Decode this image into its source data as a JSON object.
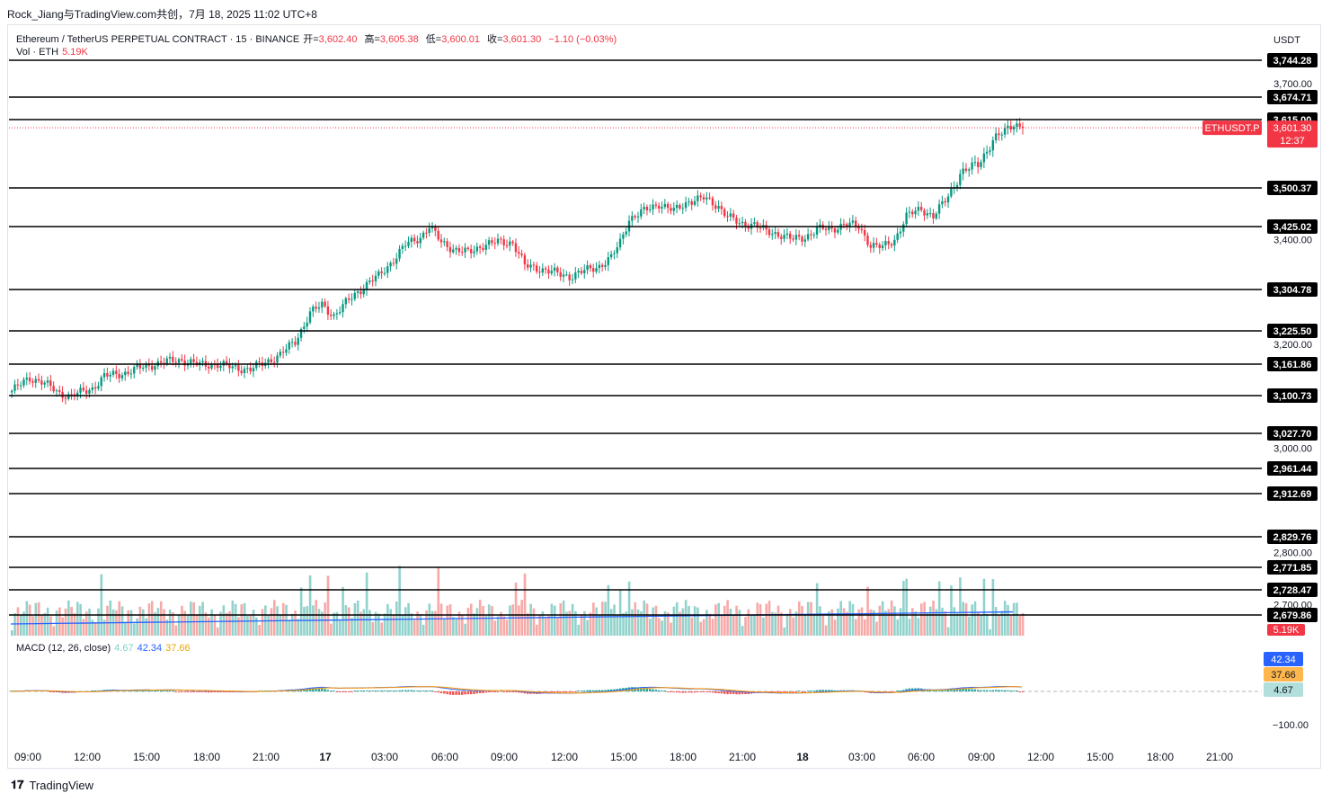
{
  "header": {
    "publisher": "Rock_Jiang与TradingView.com共创，7月 18, 2025 11:02 UTC+8"
  },
  "legend": {
    "symbol": "Ethereum / TetherUS PERPETUAL CONTRACT · 15 · BINANCE",
    "open_label": "开=",
    "open": "3,602.40",
    "high_label": "高=",
    "high": "3,605.38",
    "low_label": "低=",
    "low": "3,600.01",
    "close_label": "收=",
    "close": "3,601.30",
    "change": "−1.10 (−0.03%)",
    "vol_label": "Vol · ETH",
    "vol": "5.19K",
    "macd_label": "MACD (12, 26, close)",
    "macd_hist": "4.67",
    "macd_line": "42.34",
    "macd_signal": "37.66"
  },
  "footer": {
    "brand": "TradingView"
  },
  "chart_data": {
    "type": "candlestick",
    "currency": "USDT",
    "symbol_tag": "ETHUSDT.P",
    "last_price": "3,601.30",
    "countdown": "12:37",
    "volume_tag": "5.19K",
    "ylim": [
      2660,
      3770
    ],
    "y_ticks": [
      "3,700.00",
      "3,400.00",
      "3,200.00",
      "3,000.00",
      "2,800.00",
      "2,700.00"
    ],
    "horizontal_levels": [
      3744.28,
      3674.71,
      3615.0,
      3500.37,
      3425.02,
      3304.78,
      3225.5,
      3161.86,
      3100.73,
      3027.7,
      2961.44,
      2912.69,
      2829.76,
      2771.85,
      2728.47,
      2679.86
    ],
    "horizontal_level_labels": [
      "3,744.28",
      "3,674.71",
      "3,615.00",
      "3,500.37",
      "3,425.02",
      "3,304.78",
      "3,225.50",
      "3,161.86",
      "3,100.73",
      "3,027.70",
      "2,961.44",
      "2,912.69",
      "2,829.76",
      "2,771.85",
      "2,728.47",
      "2,679.86"
    ],
    "x_ticks": [
      "09:00",
      "12:00",
      "15:00",
      "18:00",
      "21:00",
      "17",
      "03:00",
      "06:00",
      "09:00",
      "12:00",
      "15:00",
      "18:00",
      "21:00",
      "18",
      "03:00",
      "06:00",
      "09:00",
      "12:00",
      "15:00",
      "18:00",
      "21:00"
    ],
    "close_anchors": [
      [
        0,
        3110
      ],
      [
        6,
        3135
      ],
      [
        10,
        3128
      ],
      [
        16,
        3105
      ],
      [
        20,
        3100
      ],
      [
        27,
        3115
      ],
      [
        31,
        3138
      ],
      [
        38,
        3145
      ],
      [
        45,
        3158
      ],
      [
        50,
        3165
      ],
      [
        57,
        3170
      ],
      [
        63,
        3160
      ],
      [
        69,
        3162
      ],
      [
        74,
        3155
      ],
      [
        80,
        3152
      ],
      [
        85,
        3165
      ],
      [
        90,
        3180
      ],
      [
        95,
        3205
      ],
      [
        100,
        3260
      ],
      [
        104,
        3275
      ],
      [
        108,
        3255
      ],
      [
        114,
        3290
      ],
      [
        120,
        3320
      ],
      [
        123,
        3330
      ],
      [
        127,
        3355
      ],
      [
        132,
        3390
      ],
      [
        137,
        3405
      ],
      [
        140,
        3425
      ],
      [
        144,
        3395
      ],
      [
        149,
        3380
      ],
      [
        153,
        3375
      ],
      [
        158,
        3390
      ],
      [
        163,
        3395
      ],
      [
        168,
        3395
      ],
      [
        172,
        3350
      ],
      [
        177,
        3345
      ],
      [
        183,
        3335
      ],
      [
        187,
        3330
      ],
      [
        193,
        3342
      ],
      [
        197,
        3350
      ],
      [
        201,
        3365
      ],
      [
        204,
        3395
      ],
      [
        207,
        3440
      ],
      [
        212,
        3455
      ],
      [
        217,
        3470
      ],
      [
        222,
        3455
      ],
      [
        227,
        3475
      ],
      [
        232,
        3480
      ],
      [
        237,
        3465
      ],
      [
        240,
        3445
      ],
      [
        244,
        3430
      ],
      [
        249,
        3430
      ],
      [
        253,
        3415
      ],
      [
        258,
        3410
      ],
      [
        262,
        3400
      ],
      [
        266,
        3405
      ],
      [
        270,
        3420
      ],
      [
        275,
        3420
      ],
      [
        279,
        3430
      ],
      [
        284,
        3425
      ],
      [
        288,
        3390
      ],
      [
        292,
        3385
      ],
      [
        296,
        3400
      ],
      [
        300,
        3445
      ],
      [
        305,
        3460
      ],
      [
        309,
        3445
      ],
      [
        313,
        3475
      ],
      [
        318,
        3525
      ],
      [
        324,
        3540
      ],
      [
        329,
        3580
      ],
      [
        333,
        3595
      ],
      [
        336,
        3610
      ],
      [
        339,
        3601
      ]
    ],
    "macd_ticks": [
      "42.34",
      "37.66",
      "4.67",
      "−100.00"
    ]
  }
}
